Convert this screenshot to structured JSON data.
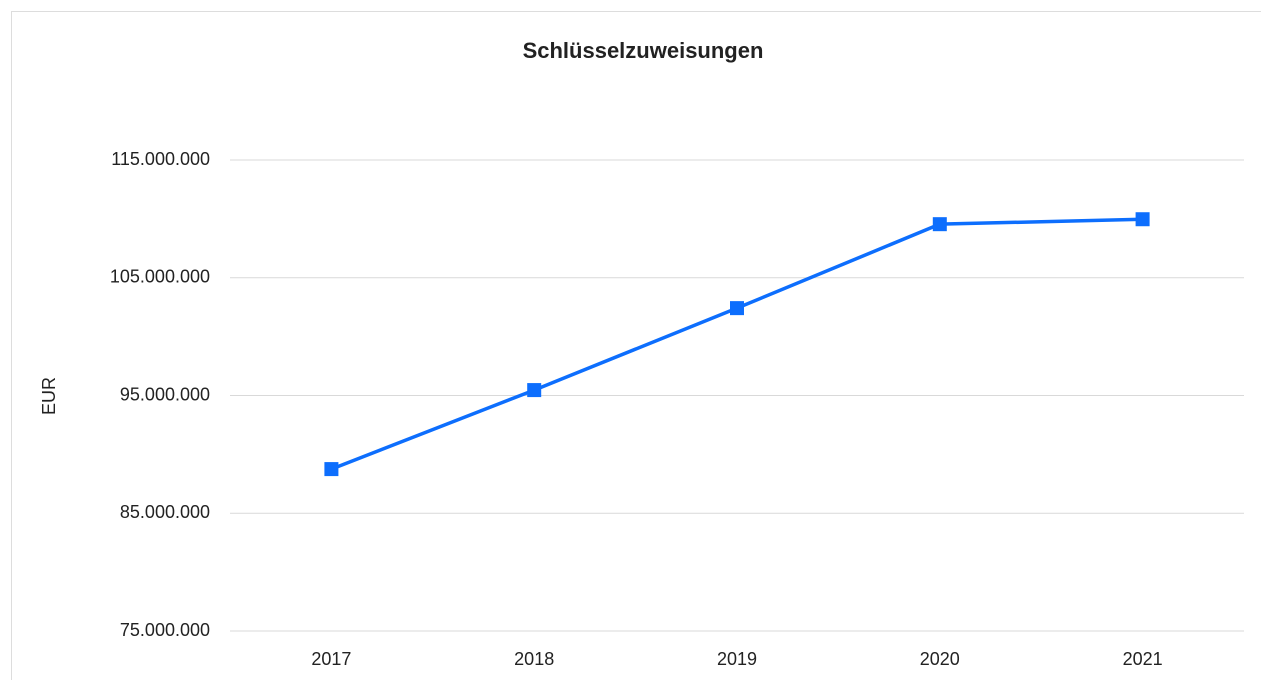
{
  "chart_data": {
    "type": "line",
    "title": "Schlüsselzuweisungen",
    "y_label": "EUR",
    "categories": [
      "2017",
      "2018",
      "2019",
      "2020",
      "2021"
    ],
    "series": [
      {
        "name": "Schlüsselzuweisungen",
        "color": "#0d6efd",
        "values": [
          88750000,
          95460000,
          102420000,
          109550000,
          109970000
        ]
      }
    ],
    "ylim": [
      75000000,
      115000000
    ],
    "yticks": [
      {
        "value": 75000000,
        "label": "75.000.000"
      },
      {
        "value": 85000000,
        "label": "85.000.000"
      },
      {
        "value": 95000000,
        "label": "95.000.000"
      },
      {
        "value": 105000000,
        "label": "105.000.000"
      },
      {
        "value": 115000000,
        "label": "115.000.000"
      }
    ],
    "grid": true
  }
}
